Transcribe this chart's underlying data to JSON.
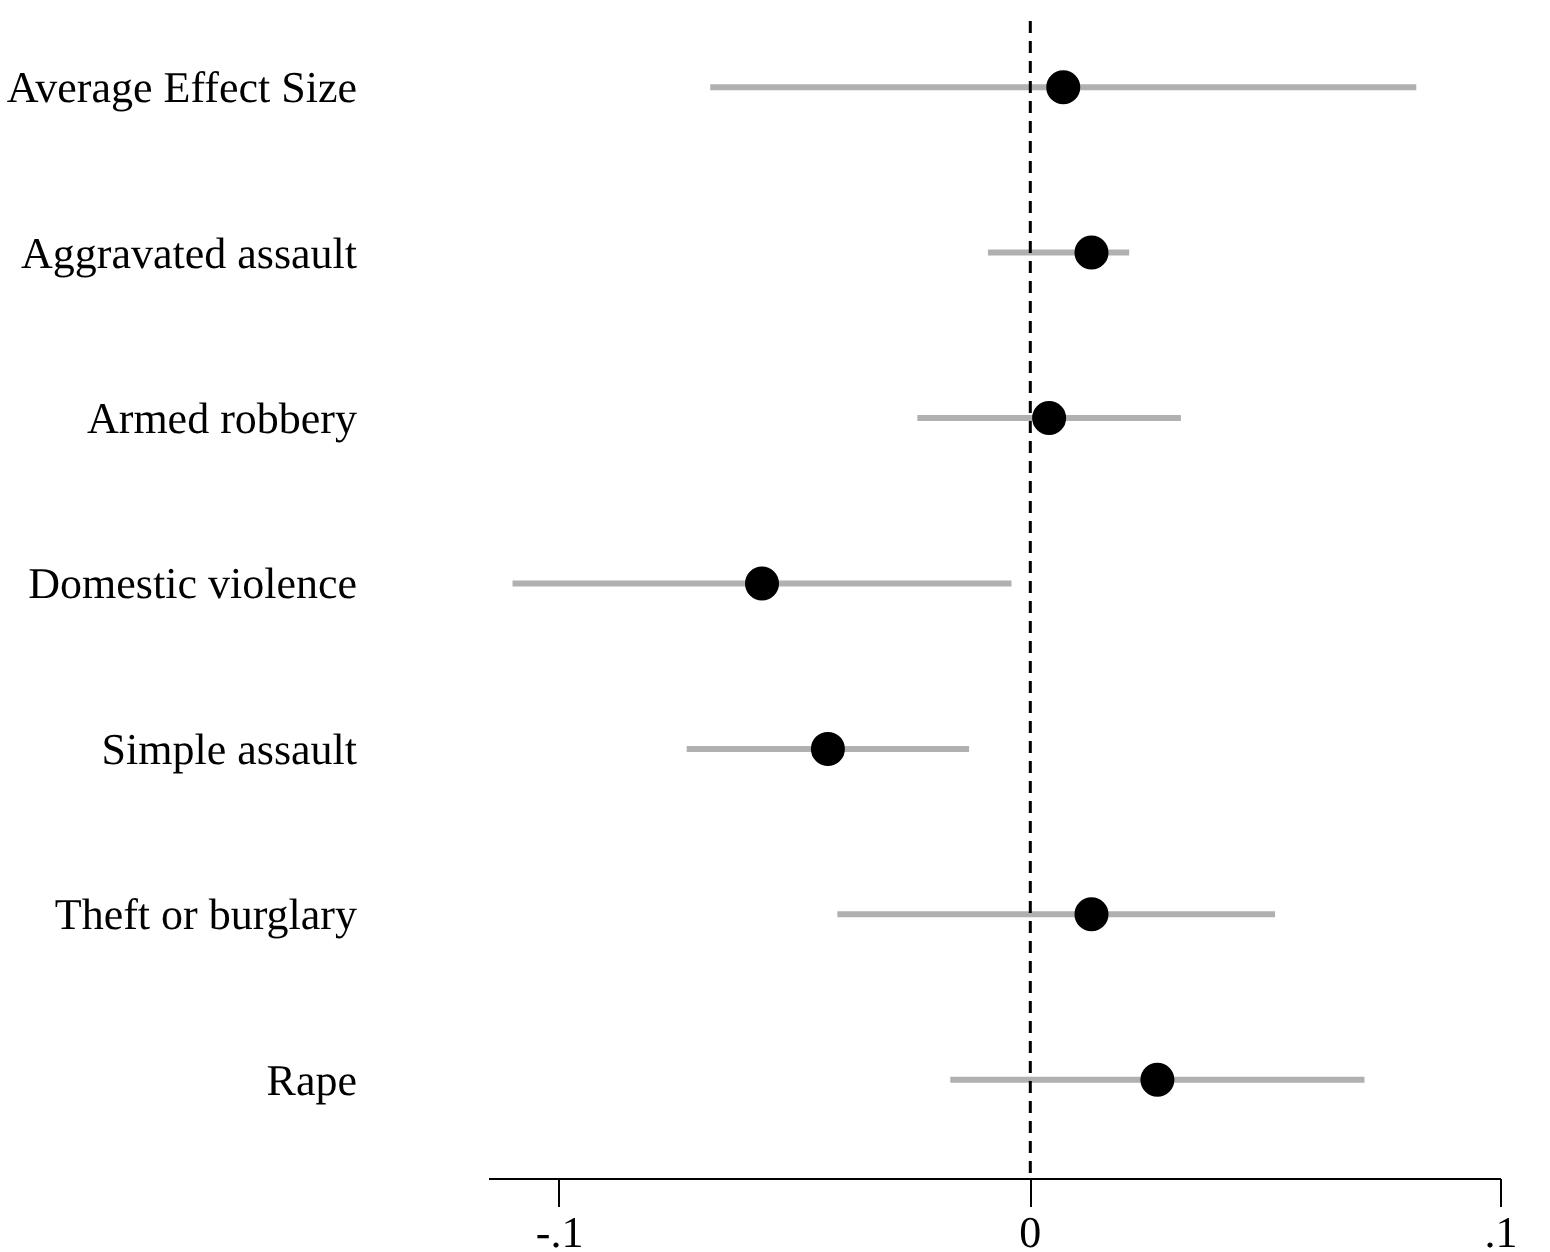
{
  "chart_data": {
    "type": "scatter",
    "orientation": "horizontal",
    "categories": [
      "Average Effect Size",
      "Aggravated assault",
      "Armed robbery",
      "Domestic violence",
      "Simple assault",
      "Theft or burglary",
      "Rape"
    ],
    "values": [
      0.007,
      0.013,
      0.004,
      -0.057,
      -0.043,
      0.013,
      0.027
    ],
    "errors": [
      [
        -0.068,
        0.082
      ],
      [
        -0.009,
        0.021
      ],
      [
        -0.024,
        0.032
      ],
      [
        -0.11,
        -0.004
      ],
      [
        -0.073,
        -0.013
      ],
      [
        -0.041,
        0.052
      ],
      [
        -0.017,
        0.071
      ]
    ],
    "color": "#000000",
    "marker": "circle",
    "xlim": [
      -0.115,
      0.1
    ],
    "xticks": [
      {
        "value": -0.1,
        "label": "-.1"
      },
      {
        "value": 0,
        "label": "0"
      },
      {
        "value": 0.1,
        "label": ".1"
      }
    ],
    "ref_lines": [
      {
        "axis": "x",
        "value": 0,
        "line_style": "dashed",
        "color": "#000000"
      }
    ],
    "grid": false
  }
}
